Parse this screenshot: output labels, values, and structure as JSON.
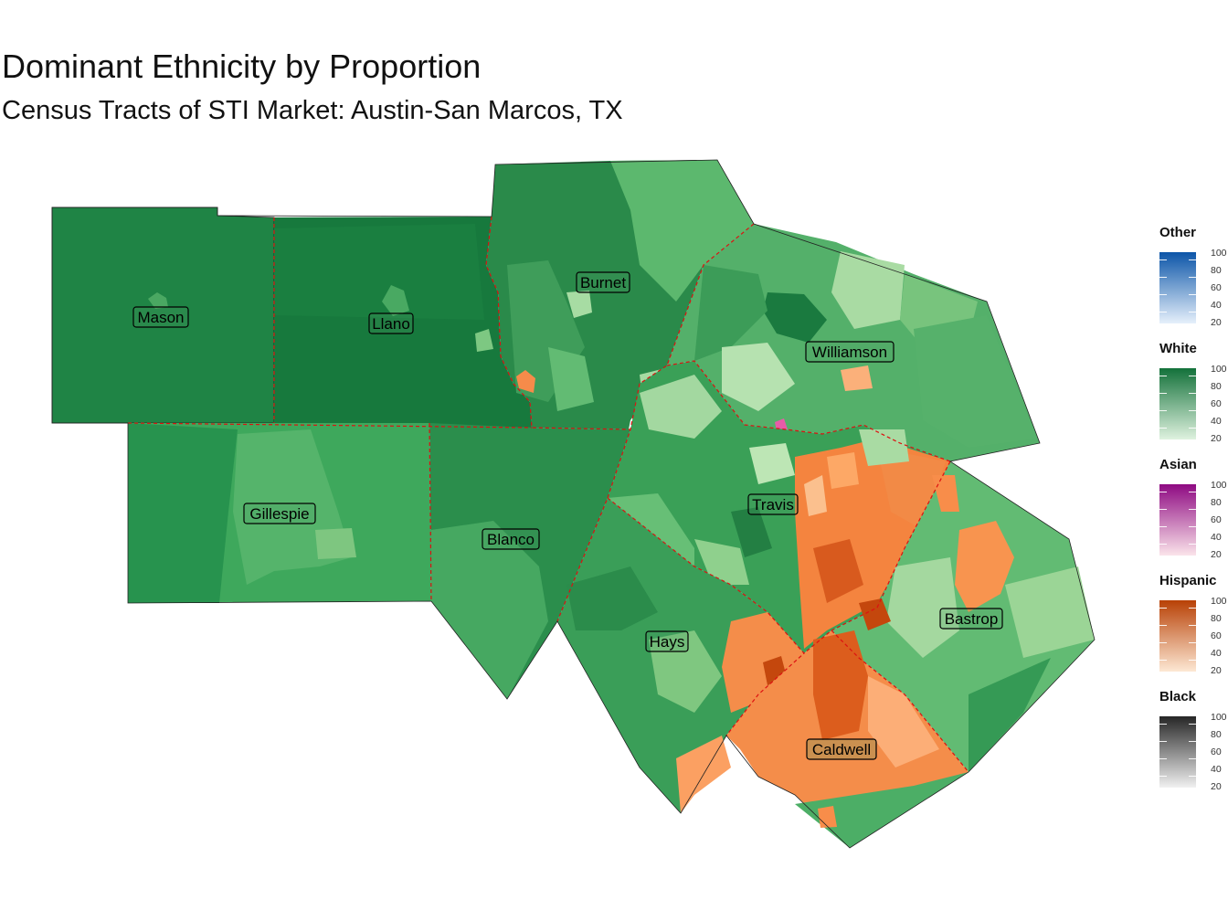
{
  "title": "Dominant Ethnicity by Proportion",
  "subtitle": "Census Tracts of STI Market: Austin-San Marcos, TX",
  "counties": [
    {
      "name": "Mason",
      "color": "#1f8445"
    },
    {
      "name": "Llano",
      "color": "#17793d"
    },
    {
      "name": "Burnet",
      "color": "#2a8a4a"
    },
    {
      "name": "Williamson",
      "color": "#54b06a"
    },
    {
      "name": "Gillespie",
      "color": "#3ea85c"
    },
    {
      "name": "Blanco",
      "color": "#2b8e4c"
    },
    {
      "name": "Travis",
      "color": "#3aa057"
    },
    {
      "name": "Hays",
      "color": "#3a9e58"
    },
    {
      "name": "Bastrop",
      "color": "#62bb73"
    },
    {
      "name": "Caldwell",
      "color": "#f48d4a"
    }
  ],
  "legend": [
    {
      "title": "Other",
      "ticks": [
        "100",
        "80",
        "60",
        "40",
        "20"
      ],
      "color_low": "#e6f0fb",
      "color_high": "#0c55a8"
    },
    {
      "title": "White",
      "ticks": [
        "100",
        "80",
        "60",
        "40",
        "20"
      ],
      "color_low": "#dff2df",
      "color_high": "#13713a"
    },
    {
      "title": "Asian",
      "ticks": [
        "100",
        "80",
        "60",
        "40",
        "20"
      ],
      "color_low": "#fbe4ea",
      "color_high": "#8e0a82"
    },
    {
      "title": "Hispanic",
      "ticks": [
        "100",
        "80",
        "60",
        "40",
        "20"
      ],
      "color_low": "#fde8d4",
      "color_high": "#b84106"
    },
    {
      "title": "Black",
      "ticks": [
        "100",
        "80",
        "60",
        "40",
        "20"
      ],
      "color_low": "#f1f1f1",
      "color_high": "#262626"
    }
  ]
}
